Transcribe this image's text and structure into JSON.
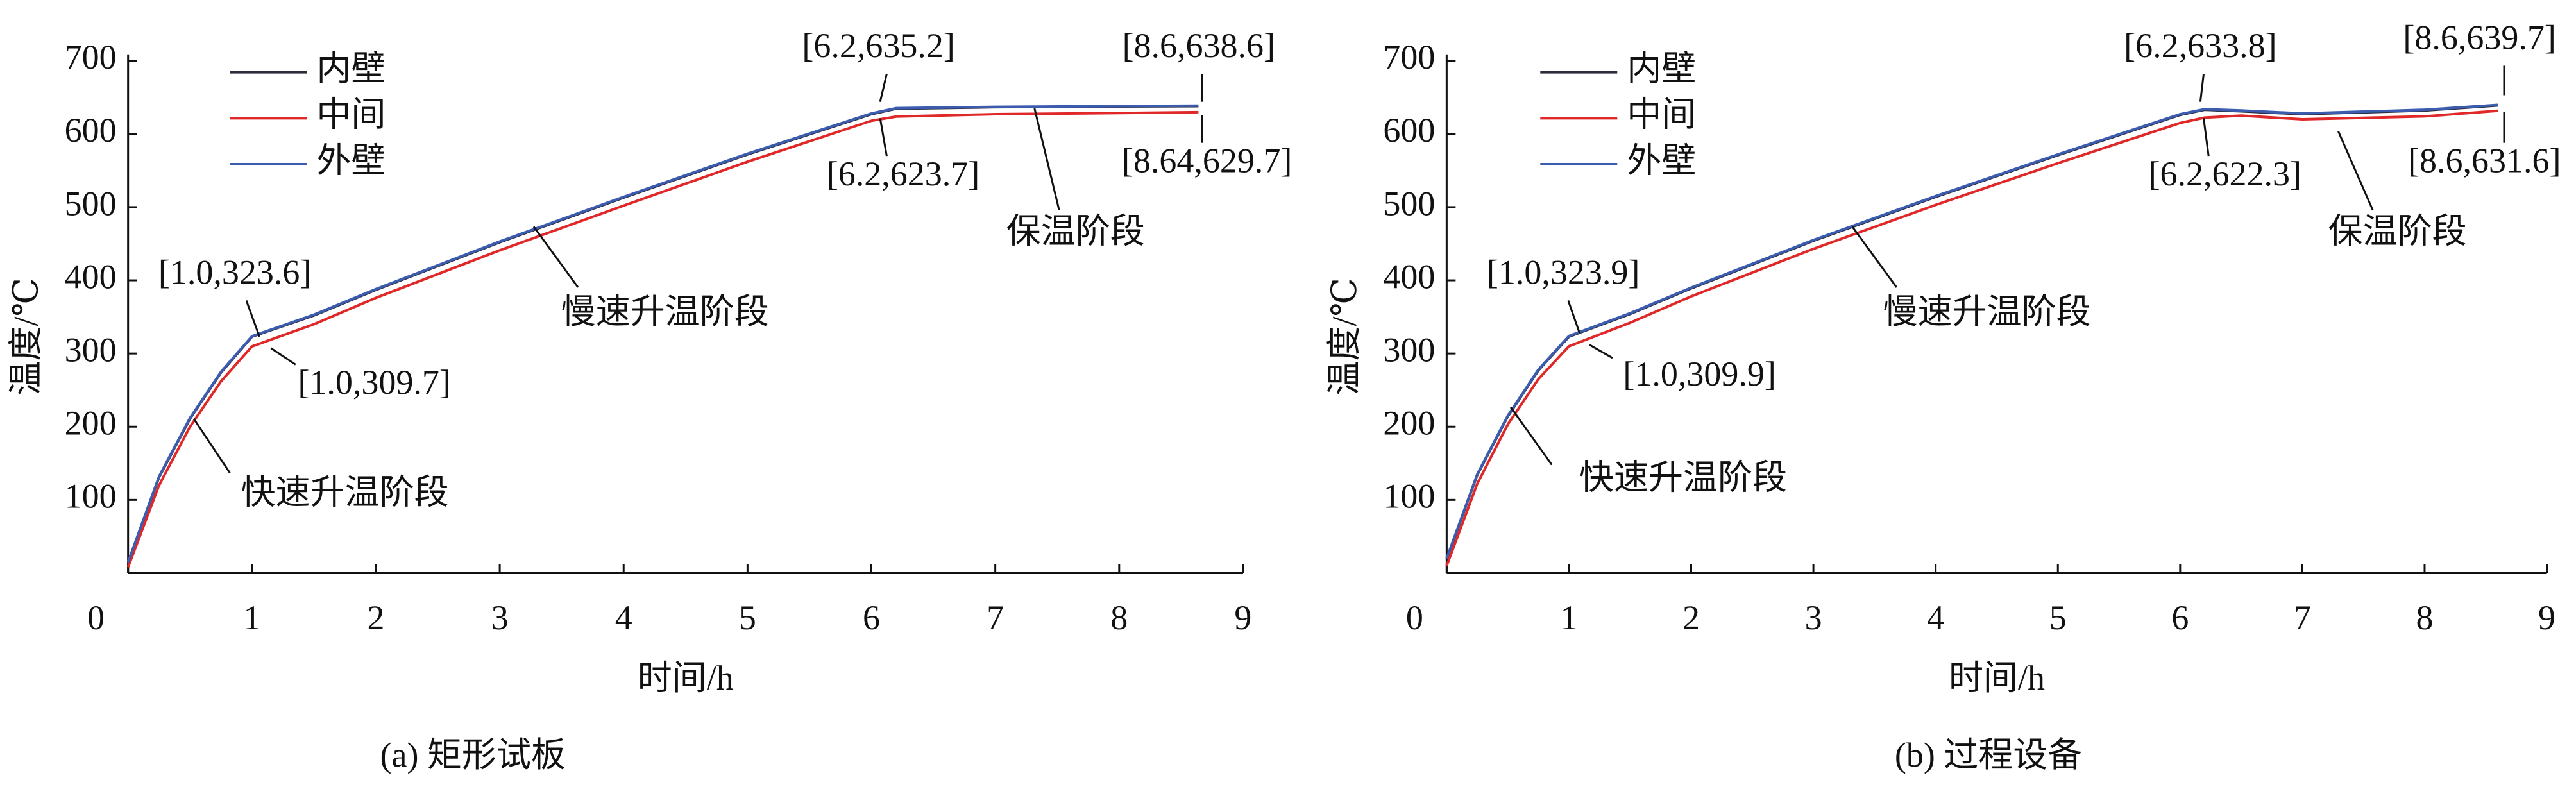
{
  "charts": [
    {
      "chart_data": {
        "type": "line",
        "x": [
          0,
          0.25,
          0.5,
          0.75,
          1,
          1.5,
          2,
          3,
          4,
          5,
          6,
          6.2,
          7,
          8,
          8.64
        ],
        "series": [
          {
            "name": "内壁",
            "color": "#2e2e3e",
            "values": [
              14,
              131,
              211,
              274,
              323,
              352,
              387,
              452,
              513,
              572,
              627,
              634.5,
              636.5,
              637.5,
              638
            ]
          },
          {
            "name": "中间",
            "color": "#e02828",
            "values": [
              8,
              120,
              200,
              262,
              309.7,
              340,
              376,
              441,
              502,
              562,
              618,
              623.7,
              627,
              628.5,
              629.7
            ]
          },
          {
            "name": "外壁",
            "color": "#3c5cb0",
            "values": [
              15,
              132,
              212,
              275,
              323.6,
              353,
              388,
              453,
              514,
              573,
              628,
              635.2,
              637,
              638,
              638.6
            ]
          }
        ],
        "xlim": [
          0,
          9
        ],
        "ylim": [
          0,
          700
        ],
        "xticks": [
          0,
          1,
          2,
          3,
          4,
          5,
          6,
          7,
          8,
          9
        ],
        "yticks": [
          100,
          200,
          300,
          400,
          500,
          600,
          700
        ],
        "xlabel": "时间/h",
        "ylabel": "温度/℃",
        "caption": "(a) 矩形试板",
        "annotations": [
          "[1.0,323.6]",
          "[1.0,309.7]",
          "[6.2,635.2]",
          "[6.2,623.7]",
          "[8.6,638.6]",
          "[8.64,629.7]"
        ],
        "stage_labels": [
          "快速升温阶段",
          "慢速升温阶段",
          "保温阶段"
        ]
      }
    },
    {
      "chart_data": {
        "type": "line",
        "x": [
          0,
          0.25,
          0.5,
          0.75,
          1,
          1.5,
          2,
          3,
          4,
          5,
          6,
          6.2,
          6.5,
          7,
          8,
          8.6
        ],
        "series": [
          {
            "name": "内壁",
            "color": "#2e2e3e",
            "values": [
              19,
              134,
              214,
              277,
              323,
              354,
              389,
              454,
              514,
              571,
              626,
              633,
              631,
              627,
              632,
              639
            ]
          },
          {
            "name": "中间",
            "color": "#e02828",
            "values": [
              10,
              122,
              203,
              265,
              309.9,
              342,
              378,
              443,
              503,
              560,
              615,
              622.3,
              625,
              620,
              624,
              631.6
            ]
          },
          {
            "name": "外壁",
            "color": "#3c5cb0",
            "values": [
              20,
              135,
              215,
              278,
              323.9,
              355,
              390,
              455,
              515,
              572,
              627,
              633.8,
              632,
              628,
              633,
              639.7
            ]
          }
        ],
        "xlim": [
          0,
          9
        ],
        "ylim": [
          0,
          700
        ],
        "xticks": [
          0,
          1,
          2,
          3,
          4,
          5,
          6,
          7,
          8,
          9
        ],
        "yticks": [
          100,
          200,
          300,
          400,
          500,
          600,
          700
        ],
        "xlabel": "时间/h",
        "ylabel": "温度/℃",
        "caption": "(b) 过程设备",
        "annotations": [
          "[1.0,323.9]",
          "[1.0,309.9]",
          "[6.2,633.8]",
          "[6.2,622.3]",
          "[8.6,639.7]",
          "[8.6,631.6]"
        ],
        "stage_labels": [
          "快速升温阶段",
          "慢速升温阶段",
          "保温阶段"
        ]
      }
    }
  ]
}
